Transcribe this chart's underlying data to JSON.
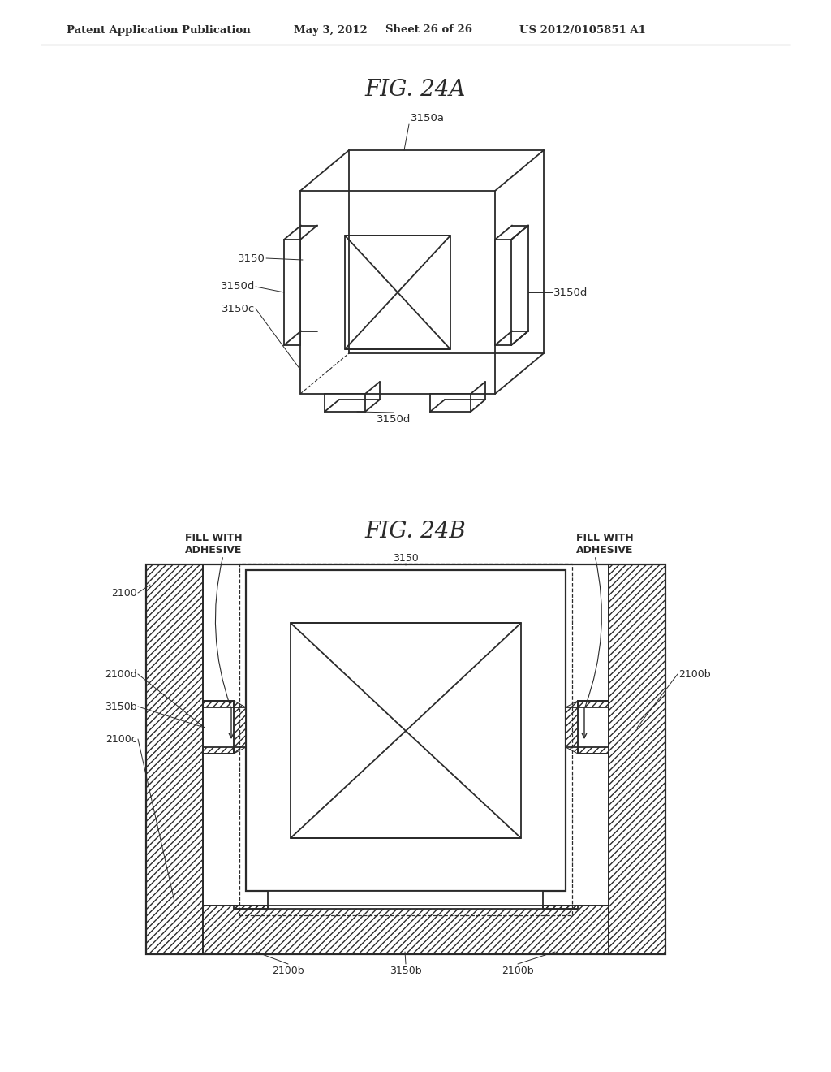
{
  "bg_color": "#ffffff",
  "header_text": "Patent Application Publication",
  "header_date": "May 3, 2012",
  "header_sheet": "Sheet 26 of 26",
  "header_patent": "US 2012/0105851 A1",
  "fig_a_title": "FIG. 24A",
  "fig_b_title": "FIG. 24B",
  "line_color": "#2a2a2a",
  "label_color": "#2a2a2a"
}
